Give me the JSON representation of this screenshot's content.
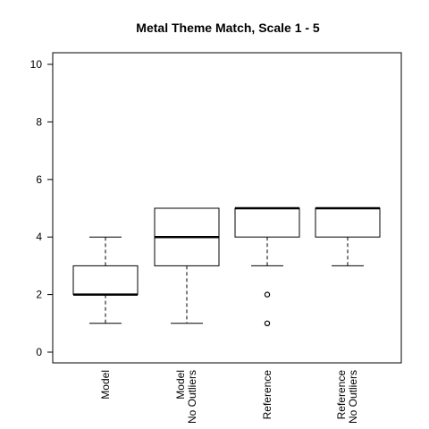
{
  "chart_data": {
    "type": "boxplot",
    "title": "Metal Theme Match, Scale 1 - 5",
    "xlabel": "",
    "ylabel": "",
    "ylim": [
      -0.4,
      10.4
    ],
    "yticks": [
      0,
      2,
      4,
      6,
      8,
      10
    ],
    "grid": false,
    "legend": "none",
    "categories": [
      {
        "line1": "Model",
        "line2": ""
      },
      {
        "line1": "Model",
        "line2": "No Outliers"
      },
      {
        "line1": "Reference",
        "line2": ""
      },
      {
        "line1": "Reference",
        "line2": "No Outliers"
      }
    ],
    "boxes": [
      {
        "whisker_low": 1,
        "q1": 2,
        "median": 2,
        "q3": 3,
        "whisker_high": 4,
        "outliers": []
      },
      {
        "whisker_low": 1,
        "q1": 3,
        "median": 4,
        "q3": 5,
        "whisker_high": 5,
        "outliers": []
      },
      {
        "whisker_low": 3,
        "q1": 4,
        "median": 5,
        "q3": 5,
        "whisker_high": 5,
        "outliers": [
          2,
          1
        ]
      },
      {
        "whisker_low": 3,
        "q1": 4,
        "median": 5,
        "q3": 5,
        "whisker_high": 5,
        "outliers": []
      }
    ],
    "colors": {
      "box": "#000000",
      "background": "#ffffff"
    }
  }
}
